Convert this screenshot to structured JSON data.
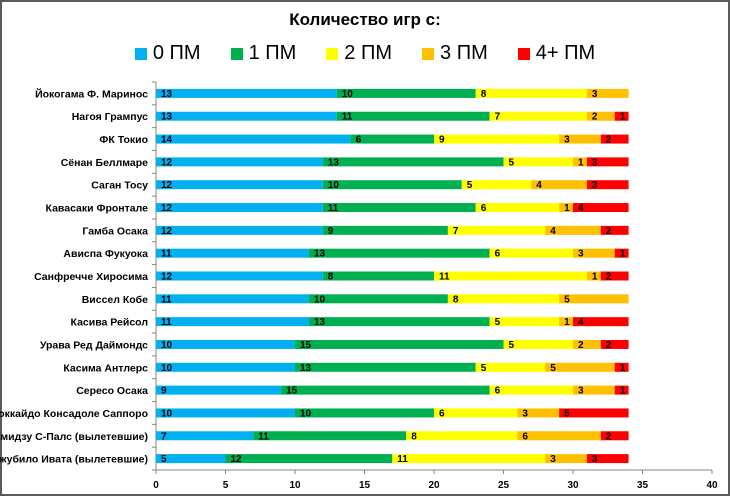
{
  "chart_data": {
    "type": "bar",
    "orientation": "horizontal",
    "stacked": true,
    "title": "Количество игр с:",
    "xlabel": "",
    "ylabel": "",
    "xlim": [
      0,
      40
    ],
    "xticks": [
      0,
      5,
      10,
      15,
      20,
      25,
      30,
      35,
      40
    ],
    "grid": false,
    "legend_position": "top",
    "categories": [
      "Йокогама Ф. Маринос",
      "Нагоя Грампус",
      "ФК Токио",
      "Сёнан Беллмаре",
      "Саган Тосу",
      "Кавасаки Фронтале",
      "Гамба Осака",
      "Ависпа Фукуока",
      "Санфречче Хиросима",
      "Виссел Кобе",
      "Касива Рейсол",
      "Урава Ред Даймондс",
      "Касима Антлерс",
      "Сересо Осака",
      "Хоккайдо Консадоле Саппоро",
      "Симидзу С-Палс (вылетевшие)",
      "Джубило Ивата (вылетевшие)"
    ],
    "series": [
      {
        "name": "0 ПМ",
        "color": "#00b0f0",
        "values": [
          13,
          13,
          14,
          12,
          12,
          12,
          12,
          11,
          12,
          11,
          11,
          10,
          10,
          9,
          10,
          7,
          5
        ]
      },
      {
        "name": "1 ПМ",
        "color": "#00b050",
        "values": [
          10,
          11,
          6,
          13,
          10,
          11,
          9,
          13,
          8,
          10,
          13,
          15,
          13,
          15,
          10,
          11,
          12
        ]
      },
      {
        "name": "2 ПМ",
        "color": "#ffff00",
        "values": [
          8,
          7,
          9,
          5,
          5,
          6,
          7,
          6,
          11,
          8,
          5,
          5,
          5,
          6,
          6,
          8,
          11
        ]
      },
      {
        "name": "3 ПМ",
        "color": "#ffc000",
        "values": [
          3,
          2,
          3,
          1,
          4,
          1,
          4,
          3,
          1,
          5,
          1,
          2,
          5,
          3,
          3,
          6,
          3
        ]
      },
      {
        "name": "4+ ПМ",
        "color": "#ff0000",
        "values": [
          0,
          1,
          2,
          3,
          3,
          4,
          2,
          1,
          2,
          0,
          4,
          2,
          1,
          1,
          5,
          2,
          3
        ]
      }
    ]
  }
}
